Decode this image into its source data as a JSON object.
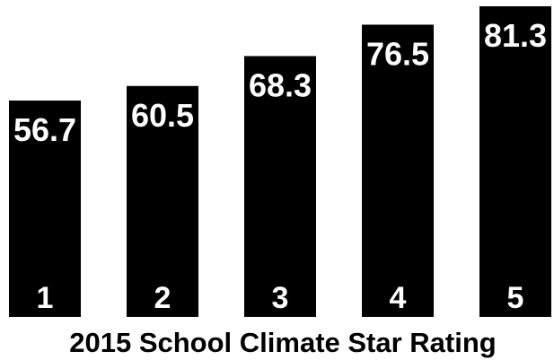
{
  "chart_data": {
    "type": "bar",
    "categories": [
      "1",
      "2",
      "3",
      "4",
      "5"
    ],
    "values": [
      56.7,
      60.5,
      68.3,
      76.5,
      81.3
    ],
    "value_labels": [
      "56.7",
      "60.5",
      "68.3",
      "76.5",
      "81.3"
    ],
    "title": "",
    "xlabel": "2015 School Climate Star Rating",
    "ylabel": "",
    "grid": false,
    "legend": "none",
    "bar_color": "#000000",
    "label_color": "#ffffff"
  }
}
